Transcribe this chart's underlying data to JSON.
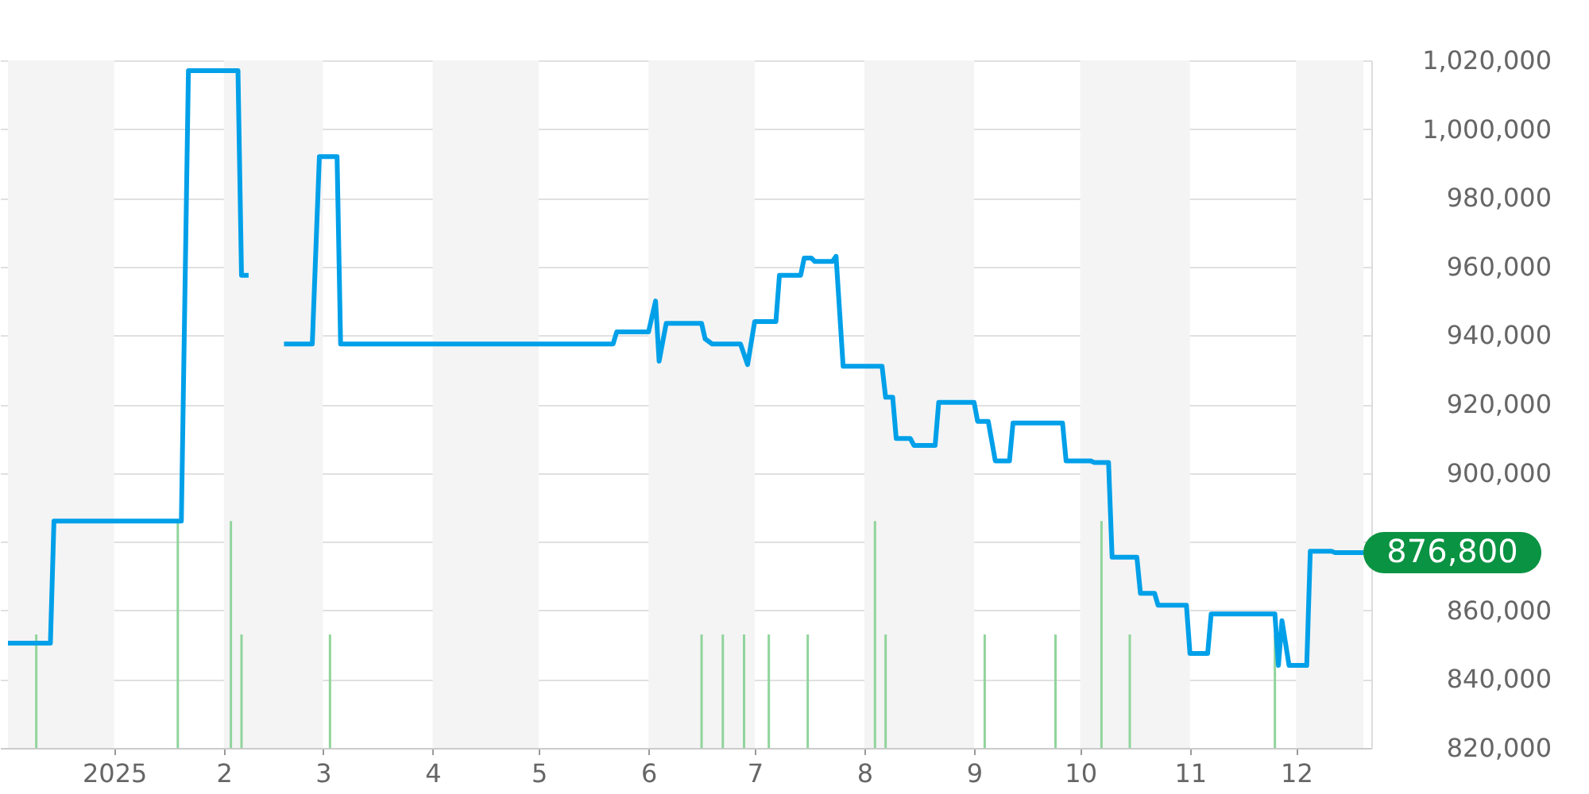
{
  "chart_data": {
    "type": "line",
    "xlim": [
      "2024-12-02",
      "2025-12-20"
    ],
    "xticks": [
      {
        "value": "2025-01-01",
        "label": "2025"
      },
      {
        "value": "2025-02-01",
        "label": "2"
      },
      {
        "value": "2025-03-01",
        "label": "3"
      },
      {
        "value": "2025-04-01",
        "label": "4"
      },
      {
        "value": "2025-05-01",
        "label": "5"
      },
      {
        "value": "2025-06-01",
        "label": "6"
      },
      {
        "value": "2025-07-01",
        "label": "7"
      },
      {
        "value": "2025-08-01",
        "label": "8"
      },
      {
        "value": "2025-09-01",
        "label": "9"
      },
      {
        "value": "2025-10-01",
        "label": "10"
      },
      {
        "value": "2025-11-01",
        "label": "11"
      },
      {
        "value": "2025-12-01",
        "label": "12"
      }
    ],
    "ylim": [
      820000,
      1020000
    ],
    "yticks": [
      {
        "value": 820000,
        "label": "820,000"
      },
      {
        "value": 840000,
        "label": "840,000"
      },
      {
        "value": 860000,
        "label": "860,000"
      },
      {
        "value": 880000,
        "label": null
      },
      {
        "value": 900000,
        "label": "900,000"
      },
      {
        "value": 920000,
        "label": "920,000"
      },
      {
        "value": 940000,
        "label": "940,000"
      },
      {
        "value": 960000,
        "label": "960,000"
      },
      {
        "value": 980000,
        "label": "980,000"
      },
      {
        "value": 1000000,
        "label": "1,000,000"
      },
      {
        "value": 1020000,
        "label": "1,020,000"
      }
    ],
    "line_style": "solid",
    "grid": "y",
    "bands": [
      {
        "axis": "x",
        "from": "2024-12-02",
        "to": "2025-01-01",
        "color": "#f4f4f4"
      },
      {
        "axis": "x",
        "from": "2025-02-01",
        "to": "2025-03-01",
        "color": "#f4f4f4"
      },
      {
        "axis": "x",
        "from": "2025-04-01",
        "to": "2025-05-01",
        "color": "#f4f4f4"
      },
      {
        "axis": "x",
        "from": "2025-06-01",
        "to": "2025-07-01",
        "color": "#f4f4f4"
      },
      {
        "axis": "x",
        "from": "2025-08-01",
        "to": "2025-09-01",
        "color": "#f4f4f4"
      },
      {
        "axis": "x",
        "from": "2025-10-01",
        "to": "2025-11-01",
        "color": "#f4f4f4"
      },
      {
        "axis": "x",
        "from": "2025-12-01",
        "to": "2025-12-20",
        "color": "#f4f4f4"
      }
    ],
    "annotations": [
      {
        "text": "876,800",
        "x": "2025-12-20",
        "y": 876800
      }
    ],
    "series": [
      {
        "type": "bar",
        "color": "#90d49c",
        "x": [
          "2024-12-10",
          "2025-01-19",
          "2025-02-03",
          "2025-02-06",
          "2025-03-03",
          "2025-06-16",
          "2025-06-22",
          "2025-06-28",
          "2025-07-05",
          "2025-07-16",
          "2025-08-04",
          "2025-08-07",
          "2025-09-04",
          "2025-09-24",
          "2025-10-07",
          "2025-10-15",
          "2025-11-25"
        ],
        "values": [
          853000,
          886000,
          886000,
          853000,
          853000,
          853000,
          853000,
          853000,
          853000,
          853000,
          886000,
          853000,
          853000,
          853000,
          886000,
          853000,
          853000
        ]
      },
      {
        "color": "#00a0e9",
        "x": [
          "2024-12-02",
          "2024-12-14",
          "2024-12-15",
          "2025-01-20",
          "2025-01-22",
          "2025-02-05",
          "2025-02-06",
          "2025-02-08",
          "2025-02-12",
          "2025-02-18",
          "2025-02-26",
          "2025-02-28",
          "2025-03-05",
          "2025-03-06",
          "2025-05-22",
          "2025-05-23",
          "2025-06-01",
          "2025-06-03",
          "2025-06-04",
          "2025-06-06",
          "2025-06-16",
          "2025-06-17",
          "2025-06-19",
          "2025-06-27",
          "2025-06-29",
          "2025-07-01",
          "2025-07-07",
          "2025-07-08",
          "2025-07-14",
          "2025-07-15",
          "2025-07-17",
          "2025-07-18",
          "2025-07-23",
          "2025-07-24",
          "2025-07-26",
          "2025-08-06",
          "2025-08-07",
          "2025-08-09",
          "2025-08-10",
          "2025-08-14",
          "2025-08-15",
          "2025-08-21",
          "2025-08-22",
          "2025-09-01",
          "2025-09-02",
          "2025-09-05",
          "2025-09-07",
          "2025-09-11",
          "2025-09-12",
          "2025-09-26",
          "2025-09-27",
          "2025-10-04",
          "2025-10-05",
          "2025-10-09",
          "2025-10-10",
          "2025-10-17",
          "2025-10-18",
          "2025-10-22",
          "2025-10-23",
          "2025-10-31",
          "2025-11-01",
          "2025-11-06",
          "2025-11-07",
          "2025-11-25",
          "2025-11-26",
          "2025-11-27",
          "2025-11-29",
          "2025-12-04",
          "2025-12-05",
          "2025-12-11",
          "2025-12-12",
          "2025-12-20"
        ],
        "values": [
          850500,
          850500,
          886000,
          886000,
          1017000,
          1017000,
          957500,
          957500,
          null,
          937500,
          937500,
          992000,
          992000,
          937500,
          937500,
          941000,
          941000,
          950000,
          932500,
          943500,
          943500,
          939000,
          937500,
          937500,
          931500,
          944000,
          944000,
          957500,
          957500,
          962500,
          962500,
          961500,
          961500,
          963000,
          931000,
          931000,
          922000,
          922000,
          910000,
          910000,
          908000,
          908000,
          920500,
          920500,
          915000,
          915000,
          903500,
          903500,
          914500,
          914500,
          903500,
          903500,
          903000,
          903000,
          875500,
          875500,
          865000,
          865000,
          861500,
          861500,
          847500,
          847500,
          859000,
          859000,
          844000,
          857000,
          844000,
          844000,
          877200,
          877200,
          876800,
          876800
        ]
      }
    ]
  }
}
